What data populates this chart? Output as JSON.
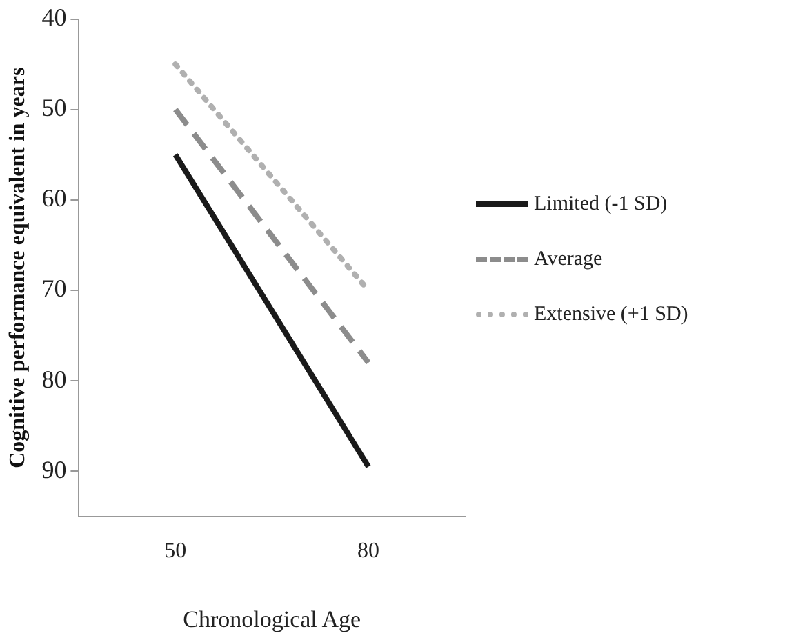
{
  "chart_data": {
    "type": "line",
    "xlabel": "Chronological Age",
    "ylabel": "Cognitive performance equivalent in years",
    "categories": [
      "50",
      "80"
    ],
    "series": [
      {
        "name": "Limited (-1 SD)",
        "color": "#1a1a1a",
        "values": [
          55,
          89.5
        ],
        "line_style": "solid"
      },
      {
        "name": "Average",
        "color": "#8c8c8c",
        "values": [
          50,
          78
        ],
        "line_style": "dashed"
      },
      {
        "name": "Extensive (+1 SD)",
        "color": "#b0b0b0",
        "values": [
          45,
          70
        ],
        "line_style": "dotted"
      }
    ],
    "ylim": [
      95,
      40
    ],
    "yticks": [
      40,
      50,
      60,
      70,
      80,
      90
    ],
    "grid": false,
    "legend": "right",
    "marker": "none"
  }
}
